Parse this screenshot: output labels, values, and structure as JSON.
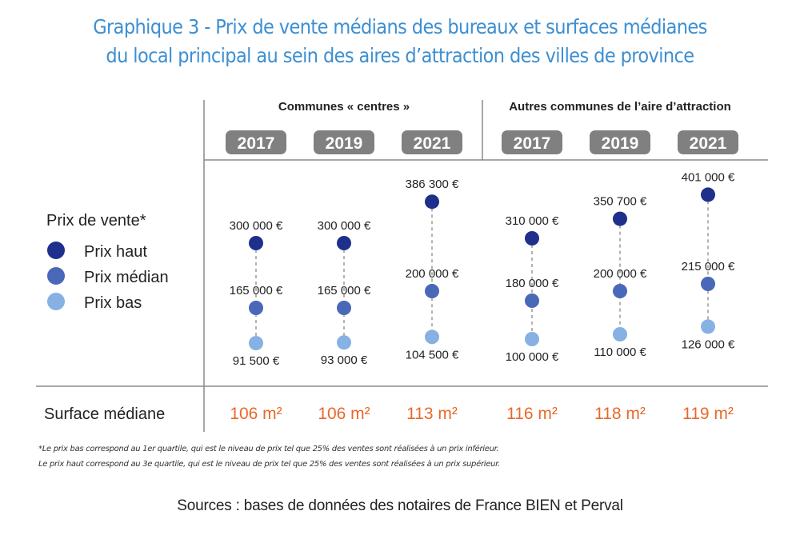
{
  "title_line1": "Graphique 3 - Prix de vente médians des bureaux et surfaces médianes",
  "title_line2": "du local principal au sein des aires d’attraction des villes de province",
  "colors": {
    "prix_haut": "#1f2f8c",
    "prix_median": "#4a68b8",
    "prix_bas": "#86b1e2",
    "surface": "#e8682a",
    "title": "#3d8fd1",
    "year_badge": "#808080"
  },
  "chart_data": {
    "type": "scatter",
    "groups": [
      {
        "label": "Communes « centres »",
        "years": [
          "2017",
          "2019",
          "2021"
        ]
      },
      {
        "label": "Autres communes de l’aire d’attraction",
        "years": [
          "2017",
          "2019",
          "2021"
        ]
      }
    ],
    "legend": {
      "title": "Prix de vente*",
      "items": [
        "Prix haut",
        "Prix médian",
        "Prix bas"
      ]
    },
    "series": [
      {
        "name": "Prix haut",
        "values": [
          300000,
          300000,
          386300,
          310000,
          350700,
          401000
        ],
        "labels": [
          "300 000 €",
          "300 000 €",
          "386 300 €",
          "310 000 €",
          "350 700 €",
          "401 000 €"
        ]
      },
      {
        "name": "Prix médian",
        "values": [
          165000,
          165000,
          200000,
          180000,
          200000,
          215000
        ],
        "labels": [
          "165 000 €",
          "165 000 €",
          "200 000 €",
          "180 000 €",
          "200 000 €",
          "215 000 €"
        ]
      },
      {
        "name": "Prix bas",
        "values": [
          91500,
          93000,
          104500,
          100000,
          110000,
          126000
        ],
        "labels": [
          "91 500 €",
          "93 000 €",
          "104 500 €",
          "100 000 €",
          "110 000 €",
          "126 000 €"
        ]
      }
    ],
    "surface": {
      "label": "Surface médiane",
      "values": [
        "106 m²",
        "106 m²",
        "113 m²",
        "116 m²",
        "118 m²",
        "119 m²"
      ]
    }
  },
  "notes": [
    "*Le prix bas correspond au 1er quartile, qui est le niveau de prix tel que 25% des ventes sont réalisées à un prix inférieur.",
    "Le prix haut correspond au 3e quartile, qui est le niveau de prix tel que 25% des ventes sont réalisées à un prix supérieur."
  ],
  "source": "Sources : bases de données des notaires de France BIEN et Perval"
}
